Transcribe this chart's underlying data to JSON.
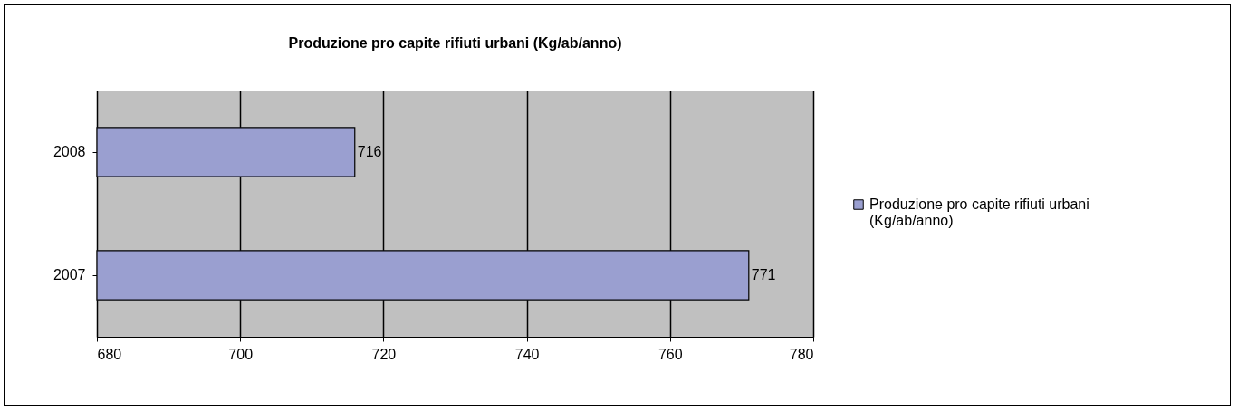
{
  "chart_data": {
    "type": "bar",
    "orientation": "horizontal",
    "title": "Produzione pro capite rifiuti urbani (Kg/ab/anno)",
    "categories": [
      "2008",
      "2007"
    ],
    "series": [
      {
        "name": "Produzione pro capite rifiuti urbani (Kg/ab/anno)",
        "color": "#9a9fd0",
        "values": [
          716,
          771
        ]
      }
    ],
    "xlim": [
      680,
      780
    ],
    "xticks": [
      680,
      700,
      720,
      740,
      760,
      780
    ],
    "grid": "x",
    "legend": "right",
    "data_labels": true
  }
}
